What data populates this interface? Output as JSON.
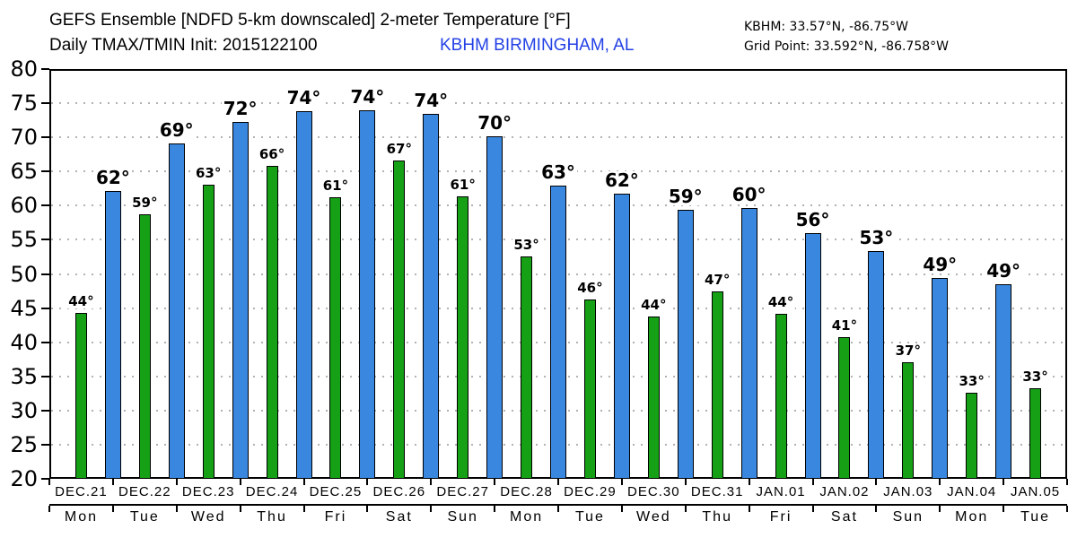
{
  "header": {
    "title_line1": "GEFS Ensemble [NDFD 5-km downscaled] 2-meter Temperature [°F]",
    "title_line2": "Daily TMAX/TMIN Init: 2015122100",
    "station": "KBHM BIRMINGHAM, AL",
    "station_coords": "KBHM: 33.57°N, -86.75°W",
    "grid_point": "Grid Point: 33.592°N, -86.758°W"
  },
  "colors": {
    "tmax_bar": "#3a87e0",
    "tmin_bar": "#15a015",
    "station_text": "#2441e5",
    "gridline": "#b2b2b2",
    "axis": "#000000"
  },
  "chart_data": {
    "type": "bar",
    "title": "GEFS Ensemble [NDFD 5-km downscaled] 2-meter Temperature [°F]",
    "subtitle": "Daily TMAX/TMIN Init: 2015122100",
    "station": "KBHM BIRMINGHAM, AL",
    "ylim": [
      20,
      80
    ],
    "ytick_step": 5,
    "y_ticks": [
      20,
      25,
      30,
      35,
      40,
      45,
      50,
      55,
      60,
      65,
      70,
      75,
      80
    ],
    "grid": "dotted horizontal at each 5°F from 25 to 75",
    "series_info": "tmin (green) bar centered within each day slot; tmax (blue) bar centered on the boundary at the end of each day slot; no tmax bar after JAN.05",
    "days": [
      {
        "date": "DEC.21",
        "weekday": "Mon",
        "tmin": 44.3,
        "tmin_label": "44°",
        "tmax": 62.2,
        "tmax_label": "62°"
      },
      {
        "date": "DEC.22",
        "weekday": "Tue",
        "tmin": 58.7,
        "tmin_label": "59°",
        "tmax": 69.1,
        "tmax_label": "69°"
      },
      {
        "date": "DEC.23",
        "weekday": "Wed",
        "tmin": 63.1,
        "tmin_label": "63°",
        "tmax": 72.3,
        "tmax_label": "72°"
      },
      {
        "date": "DEC.24",
        "weekday": "Thu",
        "tmin": 65.8,
        "tmin_label": "66°",
        "tmax": 73.8,
        "tmax_label": "74°"
      },
      {
        "date": "DEC.25",
        "weekday": "Fri",
        "tmin": 61.2,
        "tmin_label": "61°",
        "tmax": 73.9,
        "tmax_label": "74°"
      },
      {
        "date": "DEC.26",
        "weekday": "Sat",
        "tmin": 66.6,
        "tmin_label": "67°",
        "tmax": 73.5,
        "tmax_label": "74°"
      },
      {
        "date": "DEC.27",
        "weekday": "Sun",
        "tmin": 61.3,
        "tmin_label": "61°",
        "tmax": 70.2,
        "tmax_label": "70°"
      },
      {
        "date": "DEC.28",
        "weekday": "Mon",
        "tmin": 52.6,
        "tmin_label": "53°",
        "tmax": 62.9,
        "tmax_label": "63°"
      },
      {
        "date": "DEC.29",
        "weekday": "Tue",
        "tmin": 46.2,
        "tmin_label": "46°",
        "tmax": 61.7,
        "tmax_label": "62°"
      },
      {
        "date": "DEC.30",
        "weekday": "Wed",
        "tmin": 43.7,
        "tmin_label": "44°",
        "tmax": 59.4,
        "tmax_label": "59°"
      },
      {
        "date": "DEC.31",
        "weekday": "Thu",
        "tmin": 47.4,
        "tmin_label": "47°",
        "tmax": 59.7,
        "tmax_label": "60°"
      },
      {
        "date": "JAN.01",
        "weekday": "Fri",
        "tmin": 44.2,
        "tmin_label": "44°",
        "tmax": 56.0,
        "tmax_label": "56°"
      },
      {
        "date": "JAN.02",
        "weekday": "Sat",
        "tmin": 40.8,
        "tmin_label": "41°",
        "tmax": 53.4,
        "tmax_label": "53°"
      },
      {
        "date": "JAN.03",
        "weekday": "Sun",
        "tmin": 37.1,
        "tmin_label": "37°",
        "tmax": 49.4,
        "tmax_label": "49°"
      },
      {
        "date": "JAN.04",
        "weekday": "Mon",
        "tmin": 32.6,
        "tmin_label": "33°",
        "tmax": 48.5,
        "tmax_label": "49°"
      },
      {
        "date": "JAN.05",
        "weekday": "Tue",
        "tmin": 33.2,
        "tmin_label": "33°",
        "tmax": null,
        "tmax_label": null
      }
    ]
  }
}
